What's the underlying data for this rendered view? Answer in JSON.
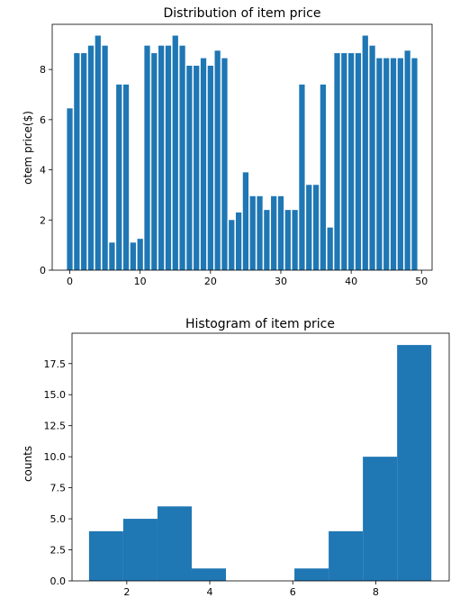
{
  "chart_data": [
    {
      "type": "bar",
      "title": "Distribution of item price",
      "xlabel": "",
      "ylabel": "otem price($)",
      "xlim": [
        -2.5,
        51.5
      ],
      "ylim": [
        0,
        9.8
      ],
      "xticks": [
        0,
        10,
        20,
        30,
        40,
        50
      ],
      "yticks": [
        0,
        2,
        4,
        6,
        8
      ],
      "color": "#1f77b4",
      "x": [
        0,
        1,
        2,
        3,
        4,
        5,
        6,
        7,
        8,
        9,
        10,
        11,
        12,
        13,
        14,
        15,
        16,
        17,
        18,
        19,
        20,
        21,
        22,
        23,
        24,
        25,
        26,
        27,
        28,
        29,
        30,
        31,
        32,
        33,
        34,
        35,
        36,
        37,
        38,
        39,
        40,
        41,
        42,
        43,
        44,
        45,
        46,
        47,
        48,
        49
      ],
      "values": [
        6.45,
        8.65,
        8.65,
        8.95,
        9.35,
        8.95,
        1.1,
        7.4,
        7.4,
        1.1,
        1.25,
        8.95,
        8.65,
        8.95,
        8.95,
        9.35,
        8.95,
        8.15,
        8.15,
        8.45,
        8.15,
        8.75,
        8.45,
        2.0,
        2.3,
        3.9,
        2.95,
        2.95,
        2.4,
        2.95,
        2.95,
        2.4,
        2.4,
        7.4,
        3.4,
        3.4,
        7.4,
        1.7,
        8.65,
        8.65,
        8.65,
        8.65,
        9.35,
        8.95,
        8.45,
        8.45,
        8.45,
        8.45,
        8.75,
        8.45
      ]
    },
    {
      "type": "bar",
      "title": "Histogram of item price",
      "xlabel": "",
      "ylabel": "counts",
      "xlim": [
        0.68,
        9.77
      ],
      "ylim": [
        0,
        19.95
      ],
      "xticks": [
        2,
        4,
        6,
        8
      ],
      "yticks": [
        "0.0",
        "2.5",
        "5.0",
        "7.5",
        "10.0",
        "12.5",
        "15.0",
        "17.5"
      ],
      "color": "#1f77b4",
      "bin_edges": [
        1.09,
        1.915,
        2.74,
        3.565,
        4.39,
        5.215,
        6.04,
        6.865,
        7.69,
        8.515,
        9.34
      ],
      "counts": [
        4,
        5,
        6,
        1,
        0,
        0,
        1,
        4,
        10,
        19
      ]
    }
  ]
}
